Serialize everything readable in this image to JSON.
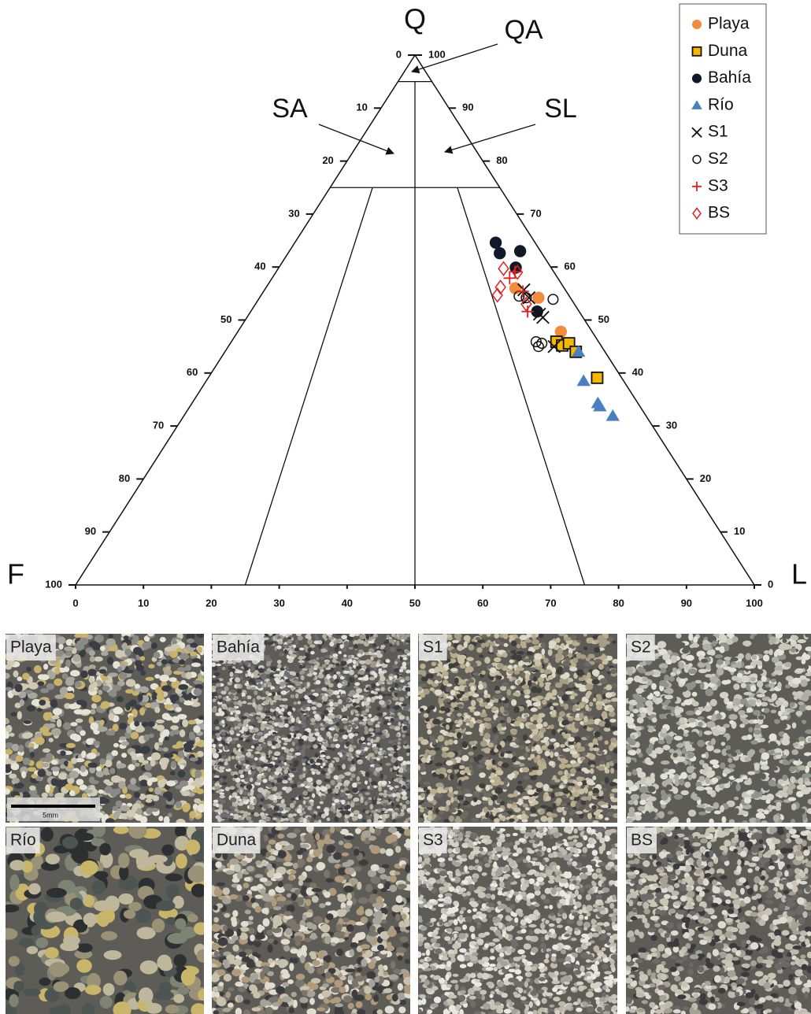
{
  "chart_data": {
    "type": "ternary",
    "apex_labels": {
      "top": "Q",
      "left": "F",
      "right": "L"
    },
    "field_labels": [
      "QA",
      "SA",
      "SL"
    ],
    "q_ticks": [
      0,
      10,
      20,
      30,
      40,
      50,
      60,
      70,
      80,
      90,
      100
    ],
    "f_ticks": [
      0,
      10,
      20,
      30,
      40,
      50,
      60,
      70,
      80,
      90,
      100
    ],
    "l_ticks": [
      0,
      10,
      20,
      30,
      40,
      50,
      60,
      70,
      80,
      90,
      100
    ],
    "legend": "top-right",
    "series": [
      {
        "name": "Playa",
        "color": "#f28c3c",
        "marker": "circle",
        "q": [
          56.0,
          54.2,
          47.8
        ],
        "l": [
          36.8,
          41.1,
          47.6
        ]
      },
      {
        "name": "Duna",
        "color": "#f5b800",
        "marker": "square",
        "q": [
          45.9,
          45.2,
          45.6,
          44.0,
          39.1
        ],
        "l": [
          47.9,
          49.1,
          49.9,
          51.7,
          57.3
        ]
      },
      {
        "name": "Bahía",
        "color": "#111827",
        "marker": "circle",
        "q": [
          64.6,
          62.6,
          63.0,
          59.9,
          51.6
        ],
        "l": [
          29.6,
          31.2,
          34.0,
          34.9,
          42.2
        ]
      },
      {
        "name": "Río",
        "color": "#4a7fc1",
        "marker": "triangle",
        "q": [
          44.0,
          38.5,
          34.3,
          33.7,
          31.9
        ],
        "l": [
          52.1,
          55.6,
          59.8,
          60.4,
          63.2
        ]
      },
      {
        "name": "S1",
        "color": "#111111",
        "marker": "x",
        "q": [
          55.7,
          54.2,
          51.1,
          50.5,
          45.0
        ],
        "l": [
          38.2,
          39.7,
          42.8,
          43.6,
          48.0
        ]
      },
      {
        "name": "S2",
        "color": "#111111",
        "marker": "open-circle",
        "q": [
          54.5,
          54.2,
          53.9,
          45.9,
          45.6,
          45.0
        ],
        "l": [
          38.1,
          39.3,
          43.4,
          44.9,
          45.9,
          45.7
        ]
      },
      {
        "name": "S3",
        "color": "#e02020",
        "marker": "plus",
        "q": [
          57.9,
          59.1,
          55.4,
          51.6
        ],
        "l": [
          35.0,
          35.2,
          38.2,
          40.8
        ]
      },
      {
        "name": "BS",
        "color": "#e02020",
        "marker": "diamond",
        "q": [
          59.7,
          59.0,
          56.2,
          54.7,
          53.0
        ],
        "l": [
          33.2,
          35.6,
          34.5,
          34.8,
          39.9
        ]
      }
    ]
  },
  "photos": {
    "panels": [
      "Playa",
      "Bahía",
      "S1",
      "S2",
      "Río",
      "Duna",
      "S3",
      "BS"
    ],
    "scale_bar": "5mm"
  }
}
